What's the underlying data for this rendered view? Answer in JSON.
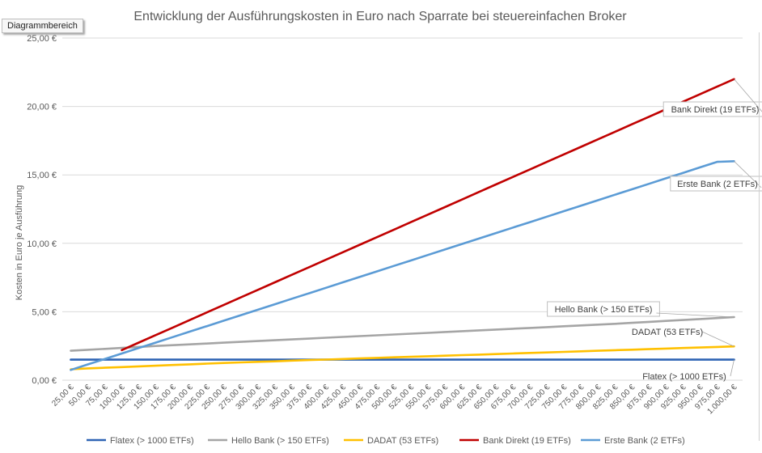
{
  "chart_area_tag": "Diagrammbereich",
  "chart_data": {
    "type": "line",
    "title": "Entwicklung der Ausführungskosten in Euro nach Sparrate bei steuereinfachen Broker",
    "ylabel": "Kosten in Euro je Ausführung",
    "xlabel": "",
    "ylim": [
      0,
      25
    ],
    "yticks": [
      "0,00 €",
      "5,00 €",
      "10,00 €",
      "15,00 €",
      "20,00 €",
      "25,00 €"
    ],
    "yticks_values": [
      0,
      5,
      10,
      15,
      20,
      25
    ],
    "grid": true,
    "legend": "bottom",
    "categories": [
      "25,00 €",
      "50,00 €",
      "75,00 €",
      "100,00 €",
      "125,00 €",
      "150,00 €",
      "175,00 €",
      "200,00 €",
      "225,00 €",
      "250,00 €",
      "275,00 €",
      "300,00 €",
      "325,00 €",
      "350,00 €",
      "375,00 €",
      "400,00 €",
      "425,00 €",
      "450,00 €",
      "475,00 €",
      "500,00 €",
      "525,00 €",
      "550,00 €",
      "575,00 €",
      "600,00 €",
      "625,00 €",
      "650,00 €",
      "675,00 €",
      "700,00 €",
      "725,00 €",
      "750,00 €",
      "775,00 €",
      "800,00 €",
      "825,00 €",
      "850,00 €",
      "875,00 €",
      "900,00 €",
      "925,00 €",
      "950,00 €",
      "975,00 €",
      "1.000,00 €"
    ],
    "series": [
      {
        "name": "Flatex (> 1000 ETFs)",
        "color": "#2e64b4",
        "label": "Flatex (> 1000 ETFs)",
        "values": [
          1.5,
          1.5,
          1.5,
          1.5,
          1.5,
          1.5,
          1.5,
          1.5,
          1.5,
          1.5,
          1.5,
          1.5,
          1.5,
          1.5,
          1.5,
          1.5,
          1.5,
          1.5,
          1.5,
          1.5,
          1.5,
          1.5,
          1.5,
          1.5,
          1.5,
          1.5,
          1.5,
          1.5,
          1.5,
          1.5,
          1.5,
          1.5,
          1.5,
          1.5,
          1.5,
          1.5,
          1.5,
          1.5,
          1.5,
          1.5
        ]
      },
      {
        "name": "Hello Bank (> 150 ETFs)",
        "color": "#a5a5a5",
        "label": "Hello Bank (> 150 ETFs)",
        "values": [
          2.15,
          2.22,
          2.29,
          2.36,
          2.43,
          2.5,
          2.56,
          2.62,
          2.68,
          2.74,
          2.8,
          2.86,
          2.92,
          2.98,
          3.04,
          3.1,
          3.16,
          3.22,
          3.28,
          3.34,
          3.4,
          3.46,
          3.52,
          3.58,
          3.64,
          3.7,
          3.76,
          3.82,
          3.88,
          3.94,
          4.0,
          4.06,
          4.12,
          4.19,
          4.26,
          4.33,
          4.4,
          4.47,
          4.54,
          4.61
        ]
      },
      {
        "name": "DADAT (53 ETFs)",
        "color": "#ffc000",
        "label": "DADAT (53 ETFs)",
        "values": [
          0.8,
          0.86,
          0.91,
          0.96,
          1.01,
          1.06,
          1.11,
          1.16,
          1.21,
          1.26,
          1.3,
          1.34,
          1.38,
          1.43,
          1.47,
          1.51,
          1.55,
          1.59,
          1.63,
          1.67,
          1.71,
          1.75,
          1.79,
          1.83,
          1.87,
          1.91,
          1.95,
          1.99,
          2.03,
          2.07,
          2.11,
          2.15,
          2.19,
          2.23,
          2.27,
          2.31,
          2.35,
          2.39,
          2.43,
          2.47
        ]
      },
      {
        "name": "Bank Direkt (19 ETFs)",
        "color": "#c00000",
        "label": "Bank Direkt (19 ETFs)",
        "values": [
          null,
          null,
          null,
          2.2,
          2.75,
          3.3,
          3.85,
          4.4,
          4.95,
          5.5,
          6.05,
          6.6,
          7.15,
          7.7,
          8.25,
          8.8,
          9.35,
          9.9,
          10.45,
          11.0,
          11.55,
          12.1,
          12.65,
          13.2,
          13.75,
          14.3,
          14.85,
          15.4,
          15.95,
          16.5,
          17.05,
          17.6,
          18.15,
          18.7,
          19.25,
          19.8,
          20.35,
          20.9,
          21.45,
          22.0
        ]
      },
      {
        "name": "Erste Bank (2 ETFs)",
        "color": "#5b9bd5",
        "label": "Erste Bank (2 ETFs)",
        "values": [
          0.75,
          1.15,
          1.55,
          1.95,
          2.35,
          2.75,
          3.15,
          3.55,
          3.95,
          4.35,
          4.75,
          5.15,
          5.55,
          5.95,
          6.35,
          6.75,
          7.15,
          7.55,
          7.95,
          8.35,
          8.75,
          9.15,
          9.55,
          9.95,
          10.35,
          10.75,
          11.15,
          11.55,
          11.95,
          12.35,
          12.75,
          13.15,
          13.55,
          13.95,
          14.35,
          14.75,
          15.15,
          15.55,
          15.95,
          16.0
        ]
      }
    ]
  }
}
